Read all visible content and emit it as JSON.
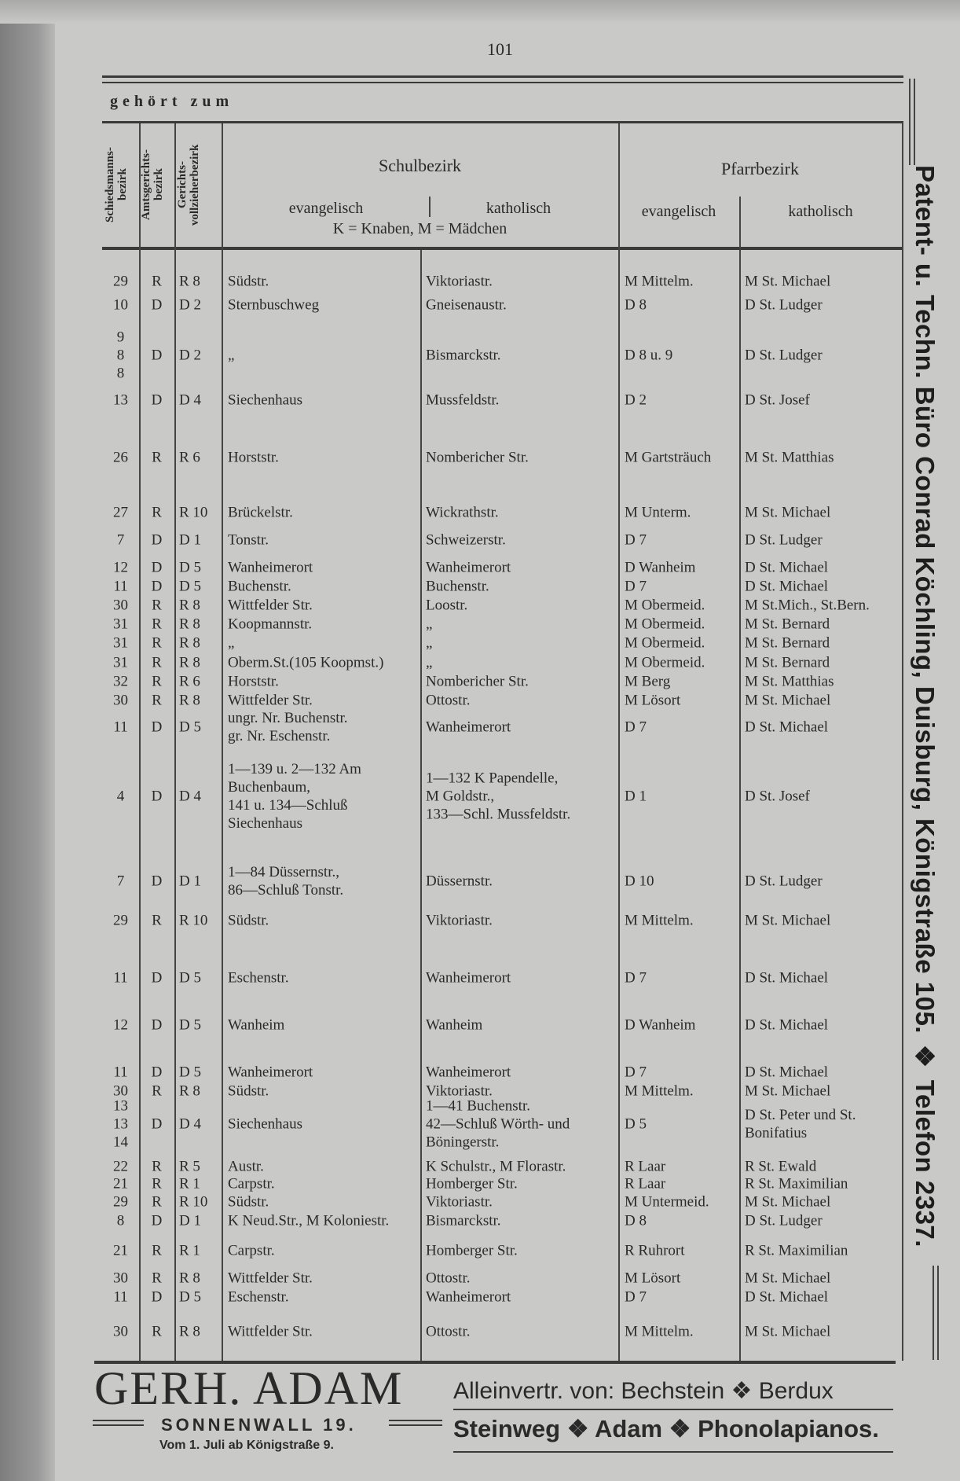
{
  "page_number": "101",
  "heading": "gehört zum",
  "columns": {
    "schiedsmann": "Schiedsmanns-\nbezirk",
    "amtsgericht": "Amtsgerichts-\nbezirk",
    "gerichtsvollzieher": "Gerichts-\nvollzieherbezirk",
    "schulbezirk": "Schulbezirk",
    "schul_evangelisch": "evangelisch",
    "schul_katholisch": "katholisch",
    "schul_legend": "K = Knaben, M = Mädchen",
    "pfarrbezirk": "Pfarrbezirk",
    "pfarr_evangelisch": "evangelisch",
    "pfarr_katholisch": "katholisch"
  },
  "rows": [
    [
      "29",
      "R",
      "R 8",
      "Südstr.",
      "Viktoriastr.",
      "M Mittelm.",
      "M St. Michael"
    ],
    [
      "10",
      "D",
      "D 2",
      "Sternbuschweg",
      "Gneisenaustr.",
      "D 8",
      "D St. Ludger"
    ],
    [
      "9\n8\n8",
      "D",
      "D 2",
      "„",
      "Bismarckstr.",
      "D 8 u. 9",
      "D St. Ludger"
    ],
    [
      "13",
      "D",
      "D 4",
      "Siechenhaus",
      "Mussfeldstr.",
      "D 2",
      "D St. Josef"
    ],
    [
      "26",
      "R",
      "R 6",
      "Horststr.",
      "Nombericher Str.",
      "M Gartsträuch",
      "M St. Matthias"
    ],
    [
      "27",
      "R",
      "R 10",
      "Brückelstr.",
      "Wickrathstr.",
      "M Unterm.",
      "M St. Michael"
    ],
    [
      "7",
      "D",
      "D 1",
      "Tonstr.",
      "Schweizerstr.",
      "D 7",
      "D St. Ludger"
    ],
    [
      "12",
      "D",
      "D 5",
      "Wanheimerort",
      "Wanheimerort",
      "D Wanheim",
      "D St. Michael"
    ],
    [
      "11",
      "D",
      "D 5",
      "Buchenstr.",
      "Buchenstr.",
      "D 7",
      "D St. Michael"
    ],
    [
      "30",
      "R",
      "R 8",
      "Wittfelder Str.",
      "Loostr.",
      "M Obermeid.",
      "M St.Mich., St.Bern."
    ],
    [
      "31",
      "R",
      "R 8",
      "Koopmannstr.",
      "„",
      "M Obermeid.",
      "M St. Bernard"
    ],
    [
      "31",
      "R",
      "R 8",
      "„",
      "„",
      "M Obermeid.",
      "M St. Bernard"
    ],
    [
      "31",
      "R",
      "R 8",
      "Oberm.St.(105 Koopmst.)",
      "„",
      "M Obermeid.",
      "M St. Bernard"
    ],
    [
      "32",
      "R",
      "R 6",
      "Horststr.",
      "Nombericher Str.",
      "M Berg",
      "M St. Matthias"
    ],
    [
      "30",
      "R",
      "R 8",
      "Wittfelder Str.",
      "Ottostr.",
      "M Lösort",
      "M St. Michael"
    ],
    [
      "11",
      "D",
      "D 5",
      "ungr. Nr. Buchenstr.\ngr. Nr. Eschenstr.",
      "Wanheimerort",
      "D 7",
      "D St. Michael"
    ],
    [
      "4",
      "D",
      "D 4",
      "1—139 u. 2—132 Am\n Buchenbaum,\n141 u. 134—Schluß\n Siechenhaus",
      "1—132 K Papendelle,\n M Goldstr.,\n133—Schl. Mussfeldstr.",
      "D 1",
      "D St. Josef"
    ],
    [
      "7",
      "D",
      "D 1",
      "1—84 Düssernstr.,\n86—Schluß Tonstr.",
      "Düssernstr.",
      "D 10",
      "D St. Ludger"
    ],
    [
      "29",
      "R",
      "R 10",
      "Südstr.",
      "Viktoriastr.",
      "M Mittelm.",
      "M St. Michael"
    ],
    [
      "11",
      "D",
      "D 5",
      "Eschenstr.",
      "Wanheimerort",
      "D 7",
      "D St. Michael"
    ],
    [
      "12",
      "D",
      "D 5",
      "Wanheim",
      "Wanheim",
      "D Wanheim",
      "D St. Michael"
    ],
    [
      "11",
      "D",
      "D 5",
      "Wanheimerort",
      "Wanheimerort",
      "D 7",
      "D St. Michael"
    ],
    [
      "30",
      "R",
      "R 8",
      "Südstr.",
      "Viktoriastr.",
      "M Mittelm.",
      "M St. Michael"
    ],
    [
      "13\n13\n14",
      "D",
      "D 4",
      "Siechenhaus",
      "1—41 Buchenstr.\n42—Schluß Wörth- und\n Böningerstr.",
      "D 5",
      "D St. Peter und St.\n Bonifatius"
    ],
    [
      "22",
      "R",
      "R 5",
      "Austr.",
      "K Schulstr., M Florastr.",
      "R Laar",
      "R St. Ewald"
    ],
    [
      "21",
      "R",
      "R 1",
      "Carpstr.",
      "Homberger Str.",
      "R Laar",
      "R St. Maximilian"
    ],
    [
      "29",
      "R",
      "R 10",
      "Südstr.",
      "Viktoriastr.",
      "M Untermeid.",
      "M St. Michael"
    ],
    [
      "8",
      "D",
      "D 1",
      "K Neud.Str., M Koloniestr.",
      "Bismarckstr.",
      "D 8",
      "D St. Ludger"
    ],
    [
      "21",
      "R",
      "R 1",
      "Carpstr.",
      "Homberger Str.",
      "R Ruhrort",
      "R St. Maximilian"
    ],
    [
      "30",
      "R",
      "R 8",
      "Wittfelder Str.",
      "Ottostr.",
      "M Lösort",
      "M St. Michael"
    ],
    [
      "11",
      "D",
      "D 5",
      "Eschenstr.",
      "Wanheimerort",
      "D 7",
      "D St. Michael"
    ],
    [
      "30",
      "R",
      "R 8",
      "Wittfelder Str.",
      "Ottostr.",
      "M Mittelm.",
      "M St. Michael"
    ]
  ],
  "side_ad": "Patent- u. Techn. Büro Conrad Köchling, Duisburg, Königstraße 105. ❖ Telefon 2337.",
  "bottom_ad": {
    "name": "GERH. ADAM",
    "address": "SONNENWALL 19.",
    "note": "Vom 1. Juli ab Königstraße 9.",
    "line1": "Alleinvertr. von: Bechstein ❖ Berdux",
    "line2": "Steinweg ❖ Adam ❖ Phonolapianos."
  }
}
